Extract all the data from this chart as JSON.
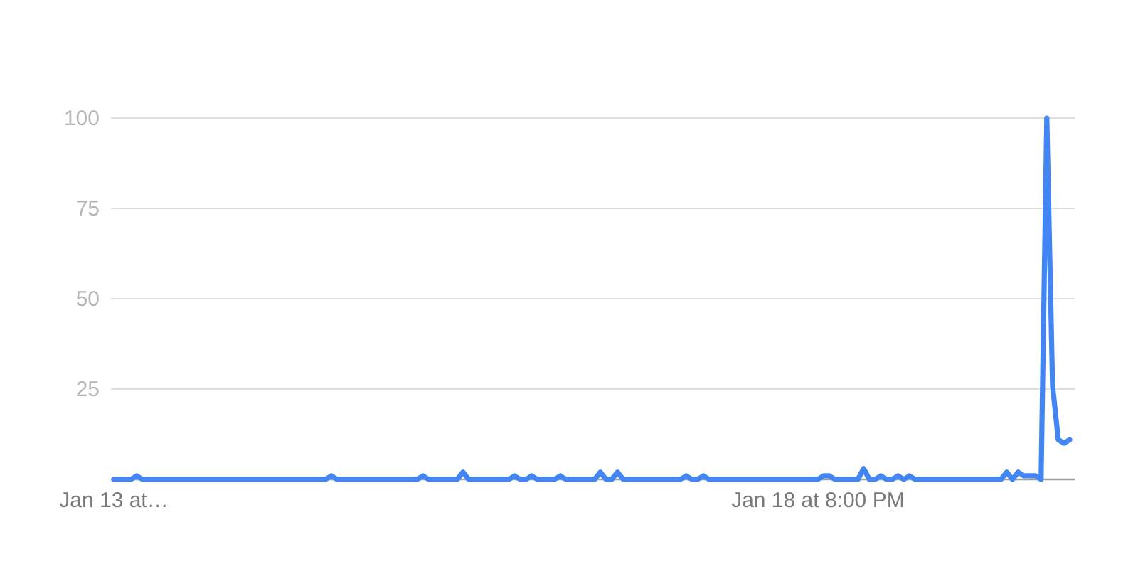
{
  "chart_data": {
    "type": "line",
    "categories": [
      "Jan 13 at…",
      null,
      null,
      null,
      null,
      null,
      null,
      null,
      null,
      null,
      null,
      null,
      null,
      null,
      null,
      null,
      null,
      null,
      null,
      null,
      null,
      null,
      null,
      null,
      null,
      null,
      null,
      null,
      null,
      null,
      null,
      null,
      null,
      null,
      null,
      null,
      null,
      null,
      null,
      null,
      null,
      null,
      null,
      null,
      null,
      null,
      null,
      null,
      null,
      null,
      null,
      null,
      null,
      null,
      null,
      null,
      null,
      null,
      null,
      null,
      null,
      null,
      null,
      null,
      null,
      null,
      null,
      null,
      null,
      null,
      null,
      null,
      null,
      null,
      null,
      null,
      null,
      null,
      null,
      null,
      null,
      null,
      null,
      null,
      null,
      null,
      null,
      null,
      null,
      null,
      null,
      null,
      null,
      null,
      null,
      null,
      null,
      null,
      null,
      null,
      null,
      null,
      null,
      null,
      null,
      null,
      null,
      null,
      null,
      null,
      null,
      null,
      null,
      null,
      null,
      null,
      null,
      null,
      null,
      null,
      null,
      null,
      null,
      "Jan 18 at 8:00 PM",
      null,
      null,
      null,
      null,
      null,
      null,
      null,
      null,
      null,
      null,
      null,
      null,
      null,
      null,
      null,
      null,
      null,
      null,
      null,
      null,
      null,
      null,
      null,
      null,
      null,
      null,
      null,
      null,
      null,
      null,
      null,
      null,
      null,
      null,
      null,
      null,
      null,
      null,
      null,
      null,
      null,
      null,
      null,
      null
    ],
    "values": [
      0,
      0,
      0,
      0,
      1,
      0,
      0,
      0,
      0,
      0,
      0,
      0,
      0,
      0,
      0,
      0,
      0,
      0,
      0,
      0,
      0,
      0,
      0,
      0,
      0,
      0,
      0,
      0,
      0,
      0,
      0,
      0,
      0,
      0,
      0,
      0,
      0,
      0,
      1,
      0,
      0,
      0,
      0,
      0,
      0,
      0,
      0,
      0,
      0,
      0,
      0,
      0,
      0,
      0,
      1,
      0,
      0,
      0,
      0,
      0,
      0,
      2,
      0,
      0,
      0,
      0,
      0,
      0,
      0,
      0,
      1,
      0,
      0,
      1,
      0,
      0,
      0,
      0,
      1,
      0,
      0,
      0,
      0,
      0,
      0,
      2,
      0,
      0,
      2,
      0,
      0,
      0,
      0,
      0,
      0,
      0,
      0,
      0,
      0,
      0,
      1,
      0,
      0,
      1,
      0,
      0,
      0,
      0,
      0,
      0,
      0,
      0,
      0,
      0,
      0,
      0,
      0,
      0,
      0,
      0,
      0,
      0,
      0,
      0,
      1,
      1,
      0,
      0,
      0,
      0,
      0,
      3,
      0,
      0,
      1,
      0,
      0,
      1,
      0,
      1,
      0,
      0,
      0,
      0,
      0,
      0,
      0,
      0,
      0,
      0,
      0,
      0,
      0,
      0,
      0,
      0,
      2,
      0,
      2,
      1,
      1,
      1,
      0,
      100,
      26,
      11,
      10,
      11
    ],
    "color": "#4285f4",
    "ylim": [
      0,
      100
    ],
    "yticks": [
      25,
      50,
      75,
      100
    ],
    "grid": "y"
  }
}
